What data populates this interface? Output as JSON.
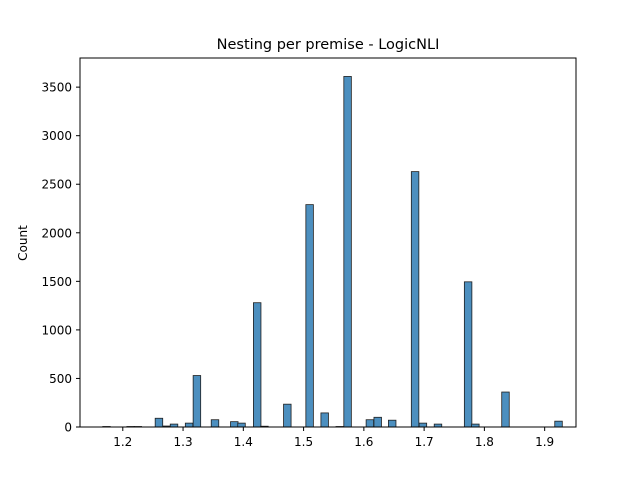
{
  "chart_data": {
    "type": "bar",
    "title": "Nesting per premise - LogicNLI",
    "xlabel": "",
    "ylabel": "Count",
    "xlim": [
      1.129,
      1.952
    ],
    "ylim": [
      0,
      3800
    ],
    "grid": false,
    "legend": "none",
    "bar_color": "#4c8fbf",
    "edge_color": "#1f1f1f",
    "bin_width": 0.0125,
    "x_ticks": [
      1.2,
      1.3,
      1.4,
      1.5,
      1.6,
      1.7,
      1.8,
      1.9
    ],
    "x_tick_labels": [
      "1.2",
      "1.3",
      "1.4",
      "1.5",
      "1.6",
      "1.7",
      "1.8",
      "1.9"
    ],
    "y_ticks": [
      0,
      500,
      1000,
      1500,
      2000,
      2500,
      3000,
      3500
    ],
    "y_tick_labels": [
      "0",
      "500",
      "1000",
      "1500",
      "2000",
      "2500",
      "3000",
      "3500"
    ],
    "bins_x": [
      1.173,
      1.213,
      1.225,
      1.26,
      1.273,
      1.285,
      1.31,
      1.323,
      1.353,
      1.385,
      1.397,
      1.423,
      1.435,
      1.473,
      1.51,
      1.535,
      1.56,
      1.573,
      1.61,
      1.623,
      1.647,
      1.685,
      1.698,
      1.723,
      1.773,
      1.785,
      1.835,
      1.923
    ],
    "values": [
      5,
      5,
      5,
      90,
      10,
      30,
      40,
      530,
      75,
      55,
      40,
      1280,
      8,
      235,
      2290,
      145,
      5,
      3610,
      75,
      100,
      70,
      2630,
      40,
      30,
      1495,
      30,
      360,
      60
    ]
  }
}
